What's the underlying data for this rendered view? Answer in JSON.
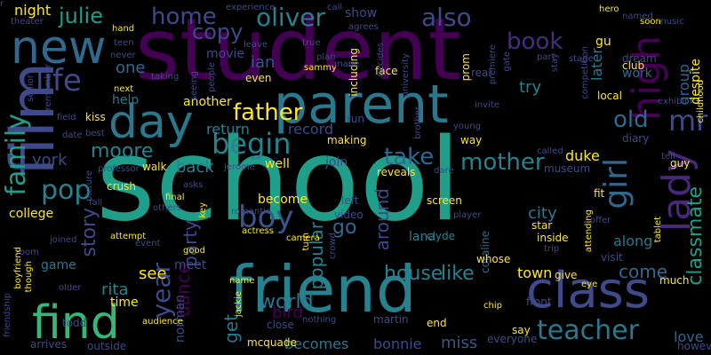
{
  "words": [
    {
      "text": "school",
      "color": "#1f9e89"
    },
    {
      "text": "student",
      "color": "#440154"
    },
    {
      "text": "friend",
      "color": "#26828e"
    },
    {
      "text": "parent",
      "color": "#2a788e"
    },
    {
      "text": "film",
      "color": "#3e4a89"
    },
    {
      "text": "class",
      "color": "#3e4a89"
    },
    {
      "text": "find",
      "color": "#35b779"
    },
    {
      "text": "new",
      "color": "#31688e"
    },
    {
      "text": "day",
      "color": "#2a788e"
    },
    {
      "text": "high",
      "color": "#440154"
    },
    {
      "text": "father",
      "color": "#fde725"
    },
    {
      "text": "boy",
      "color": "#39568c"
    },
    {
      "text": "teacher",
      "color": "#2a788e"
    },
    {
      "text": "life",
      "color": "#3e4a89"
    },
    {
      "text": "begin",
      "color": "#26828e"
    },
    {
      "text": "lady",
      "color": "#482878"
    },
    {
      "text": "family",
      "color": "#1f9e89"
    },
    {
      "text": "year",
      "color": "#3e4a89"
    },
    {
      "text": "mr",
      "color": "#3e4a89"
    },
    {
      "text": "girl",
      "color": "#31688e"
    },
    {
      "text": "pop",
      "color": "#26828e"
    },
    {
      "text": "julie",
      "color": "#1f9e89"
    },
    {
      "text": "oliver",
      "color": "#26828e"
    },
    {
      "text": "home",
      "color": "#3e4a89"
    },
    {
      "text": "also",
      "color": "#3e4a89"
    },
    {
      "text": "book",
      "color": "#472d7b"
    },
    {
      "text": "mother",
      "color": "#26828e"
    },
    {
      "text": "take",
      "color": "#31688e"
    },
    {
      "text": "old",
      "color": "#31688e"
    },
    {
      "text": "moore",
      "color": "#26828e"
    },
    {
      "text": "story",
      "color": "#3e4a89"
    },
    {
      "text": "world",
      "color": "#2a788e"
    },
    {
      "text": "house",
      "color": "#26828e"
    },
    {
      "text": "like",
      "color": "#26828e"
    },
    {
      "text": "popular",
      "color": "#26828e"
    },
    {
      "text": "go",
      "color": "#31688e"
    },
    {
      "text": "around",
      "color": "#3e4a89"
    },
    {
      "text": "come",
      "color": "#31688e"
    },
    {
      "text": "classmate",
      "color": "#1f9e89"
    },
    {
      "text": "party",
      "color": "#3e4a89"
    },
    {
      "text": "dance",
      "color": "#440154"
    },
    {
      "text": "back",
      "color": "#26828e"
    },
    {
      "text": "york",
      "color": "#3e4a89"
    },
    {
      "text": "see",
      "color": "#fde725"
    },
    {
      "text": "rita",
      "color": "#26828e"
    },
    {
      "text": "get",
      "color": "#2a788e"
    },
    {
      "text": "bird",
      "color": "#440154"
    },
    {
      "text": "miss",
      "color": "#39568c"
    },
    {
      "text": "becomes",
      "color": "#2a788e"
    },
    {
      "text": "bonnie",
      "color": "#3e4a89"
    },
    {
      "text": "love",
      "color": "#31688e"
    },
    {
      "text": "town",
      "color": "#fde725"
    },
    {
      "text": "city",
      "color": "#2a788e"
    },
    {
      "text": "along",
      "color": "#2a788e"
    },
    {
      "text": "group",
      "color": "#31688e"
    },
    {
      "text": "despite",
      "color": "#fde725"
    },
    {
      "text": "later",
      "color": "#2a788e"
    },
    {
      "text": "try",
      "color": "#26828e"
    },
    {
      "text": "work",
      "color": "#31688e"
    },
    {
      "text": "one",
      "color": "#31688e"
    },
    {
      "text": "gu",
      "color": "#fde725"
    },
    {
      "text": "duke",
      "color": "#fde725"
    },
    {
      "text": "night",
      "color": "#fde725"
    },
    {
      "text": "ian",
      "color": "#39568c"
    },
    {
      "text": "show",
      "color": "#3e4a89"
    },
    {
      "text": "another",
      "color": "#fde725"
    },
    {
      "text": "return",
      "color": "#26828e"
    },
    {
      "text": "record",
      "color": "#3e4a89"
    },
    {
      "text": "movie",
      "color": "#3e4a89"
    },
    {
      "text": "help",
      "color": "#2a788e"
    },
    {
      "text": "join",
      "color": "#3e4a89"
    },
    {
      "text": "well",
      "color": "#fde725"
    },
    {
      "text": "become",
      "color": "#fde725"
    },
    {
      "text": "meet",
      "color": "#3e4a89"
    },
    {
      "text": "norman",
      "color": "#3e4a89"
    },
    {
      "text": "lana",
      "color": "#26828e"
    },
    {
      "text": "clyde",
      "color": "#26828e"
    },
    {
      "text": "coraline",
      "color": "#31688e"
    },
    {
      "text": "game",
      "color": "#2a788e"
    },
    {
      "text": "college",
      "color": "#fde725"
    },
    {
      "text": "time",
      "color": "#fde725"
    },
    {
      "text": "give",
      "color": "#fde725"
    },
    {
      "text": "much",
      "color": "#fde725"
    },
    {
      "text": "front",
      "color": "#3e4a89"
    },
    {
      "text": "martin",
      "color": "#3e4a89"
    },
    {
      "text": "everyone",
      "color": "#3e4a89"
    },
    {
      "text": "however",
      "color": "#3e4a89"
    },
    {
      "text": "outside",
      "color": "#3e4a89"
    },
    {
      "text": "arrives",
      "color": "#3e4a89"
    },
    {
      "text": "todd",
      "color": "#3e4a89"
    },
    {
      "text": "mcquade",
      "color": "#fde725"
    },
    {
      "text": "close",
      "color": "#3e4a89"
    },
    {
      "text": "end",
      "color": "#fde725"
    },
    {
      "text": "say",
      "color": "#fde725"
    },
    {
      "text": "visit",
      "color": "#3e4a89"
    },
    {
      "text": "whose",
      "color": "#fde725"
    },
    {
      "text": "screen",
      "color": "#fde725"
    },
    {
      "text": "player",
      "color": "#3e4a89"
    },
    {
      "text": "star",
      "color": "#fde725"
    },
    {
      "text": "inside",
      "color": "#fde725"
    },
    {
      "text": "trip",
      "color": "#3e4a89"
    },
    {
      "text": "left",
      "color": "#3e4a89"
    },
    {
      "text": "video",
      "color": "#3e4a89"
    },
    {
      "text": "reveals",
      "color": "#fde725"
    },
    {
      "text": "dare",
      "color": "#3e4a89"
    },
    {
      "text": "making",
      "color": "#fde725"
    },
    {
      "text": "way",
      "color": "#fde725"
    },
    {
      "text": "museum",
      "color": "#3e4a89"
    },
    {
      "text": "fit",
      "color": "#fde725"
    },
    {
      "text": "attending",
      "color": "#fde725"
    },
    {
      "text": "offer",
      "color": "#3e4a89"
    },
    {
      "text": "diary",
      "color": "#3e4a89"
    },
    {
      "text": "tell",
      "color": "#3e4a89"
    },
    {
      "text": "guy",
      "color": "#fde725"
    },
    {
      "text": "exhibit",
      "color": "#3e4a89"
    },
    {
      "text": "childhood",
      "color": "#fde725"
    },
    {
      "text": "club",
      "color": "#fde725"
    },
    {
      "text": "dream",
      "color": "#3e4a89"
    },
    {
      "text": "local",
      "color": "#fde725"
    },
    {
      "text": "hero",
      "color": "#fde725"
    },
    {
      "text": "named",
      "color": "#3e4a89"
    },
    {
      "text": "soon",
      "color": "#fde725"
    },
    {
      "text": "music",
      "color": "#3e4a89"
    },
    {
      "text": "prom",
      "color": "#fde725"
    },
    {
      "text": "brother",
      "color": "#3e4a89"
    },
    {
      "text": "run",
      "color": "#3e4a89"
    },
    {
      "text": "real",
      "color": "#3e4a89"
    },
    {
      "text": "part",
      "color": "#3e4a89"
    },
    {
      "text": "stay",
      "color": "#3e4a89"
    },
    {
      "text": "stage",
      "color": "#3e4a89"
    },
    {
      "text": "competition",
      "color": "#3e4a89"
    },
    {
      "text": "university",
      "color": "#3e4a89"
    },
    {
      "text": "premiere",
      "color": "#3e4a89"
    },
    {
      "text": "invite",
      "color": "#3e4a89"
    },
    {
      "text": "young",
      "color": "#3e4a89"
    },
    {
      "text": "including",
      "color": "#fde725"
    },
    {
      "text": "face",
      "color": "#fde725"
    },
    {
      "text": "plan",
      "color": "#3e4a89"
    },
    {
      "text": "true",
      "color": "#3e4a89"
    },
    {
      "text": "leave",
      "color": "#3e4a89"
    },
    {
      "text": "even",
      "color": "#fde725"
    },
    {
      "text": "people",
      "color": "#3e4a89"
    },
    {
      "text": "taking",
      "color": "#3e4a89"
    },
    {
      "text": "seeing",
      "color": "#3e4a89"
    },
    {
      "text": "sammy",
      "color": "#fde725"
    },
    {
      "text": "hand",
      "color": "#fde725"
    },
    {
      "text": "teen",
      "color": "#3e4a89"
    },
    {
      "text": "never",
      "color": "#3e4a89"
    },
    {
      "text": "kiss",
      "color": "#fde725"
    },
    {
      "text": "next",
      "color": "#fde725"
    },
    {
      "text": "best",
      "color": "#3e4a89"
    },
    {
      "text": "field",
      "color": "#3e4a89"
    },
    {
      "text": "date",
      "color": "#3e4a89"
    },
    {
      "text": "senior",
      "color": "#3e4a89"
    },
    {
      "text": "remember",
      "color": "#3e4a89"
    },
    {
      "text": "theater",
      "color": "#3e4a89"
    },
    {
      "text": "walk",
      "color": "#fde725"
    },
    {
      "text": "professor",
      "color": "#3e4a89"
    },
    {
      "text": "crush",
      "color": "#fde725"
    },
    {
      "text": "picture",
      "color": "#3e4a89"
    },
    {
      "text": "fall",
      "color": "#3e4a89"
    },
    {
      "text": "asks",
      "color": "#3e4a89"
    },
    {
      "text": "final",
      "color": "#fde725"
    },
    {
      "text": "others",
      "color": "#3e4a89"
    },
    {
      "text": "attempt",
      "color": "#fde725"
    },
    {
      "text": "event",
      "color": "#3e4a89"
    },
    {
      "text": "joined",
      "color": "#3e4a89"
    },
    {
      "text": "room",
      "color": "#3e4a89"
    },
    {
      "text": "older",
      "color": "#3e4a89"
    },
    {
      "text": "audience",
      "color": "#fde725"
    },
    {
      "text": "friendship",
      "color": "#3e4a89"
    },
    {
      "text": "boyfriend",
      "color": "#fde725"
    },
    {
      "text": "though",
      "color": "#fde725"
    },
    {
      "text": "good",
      "color": "#fde725"
    },
    {
      "text": "name",
      "color": "#fde725"
    },
    {
      "text": "jackie",
      "color": "#fde725"
    },
    {
      "text": "romantic",
      "color": "#3e4a89"
    },
    {
      "text": "actress",
      "color": "#fde725"
    },
    {
      "text": "camera",
      "color": "#fde725"
    },
    {
      "text": "turn",
      "color": "#fde725"
    },
    {
      "text": "nothing",
      "color": "#3e4a89"
    },
    {
      "text": "crowd",
      "color": "#3e4a89"
    },
    {
      "text": "jerome",
      "color": "#3e4a89"
    },
    {
      "text": "key",
      "color": "#fde725"
    },
    {
      "text": "called",
      "color": "#3e4a89"
    },
    {
      "text": "tablet",
      "color": "#fde725"
    },
    {
      "text": "chip",
      "color": "#fde725"
    },
    {
      "text": "eye",
      "color": "#fde725"
    },
    {
      "text": "experience",
      "color": "#3e4a89"
    },
    {
      "text": "call",
      "color": "#3e4a89"
    },
    {
      "text": "agrees",
      "color": "#3e4a89"
    },
    {
      "text": "decides",
      "color": "#3e4a89"
    },
    {
      "text": "gate",
      "color": "#3e4a89"
    },
    {
      "text": "made",
      "color": "#3e4a89"
    },
    {
      "text": "copy",
      "color": "#3e4a89"
    },
    {
      "text": "r",
      "color": "#3e4a89"
    }
  ]
}
